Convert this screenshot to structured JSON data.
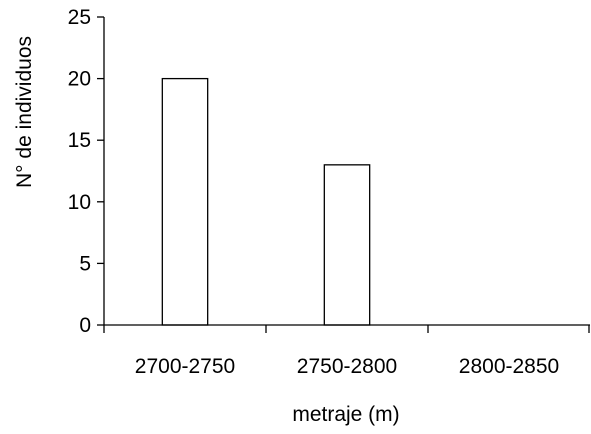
{
  "chart_data": {
    "type": "bar",
    "categories": [
      "2700-2750",
      "2750-2800",
      "2800-2850"
    ],
    "values": [
      20,
      13,
      0
    ],
    "title": "",
    "xlabel": "metraje (m)",
    "ylabel": "N° de individuos",
    "ylim": [
      0,
      25
    ],
    "yticks": [
      0,
      5,
      10,
      15,
      20,
      25
    ],
    "grid": false,
    "legend": "none",
    "colors": {
      "bar_fill": "#ffffff",
      "bar_stroke": "#000000",
      "axis": "#000000",
      "text": "#000000"
    }
  }
}
